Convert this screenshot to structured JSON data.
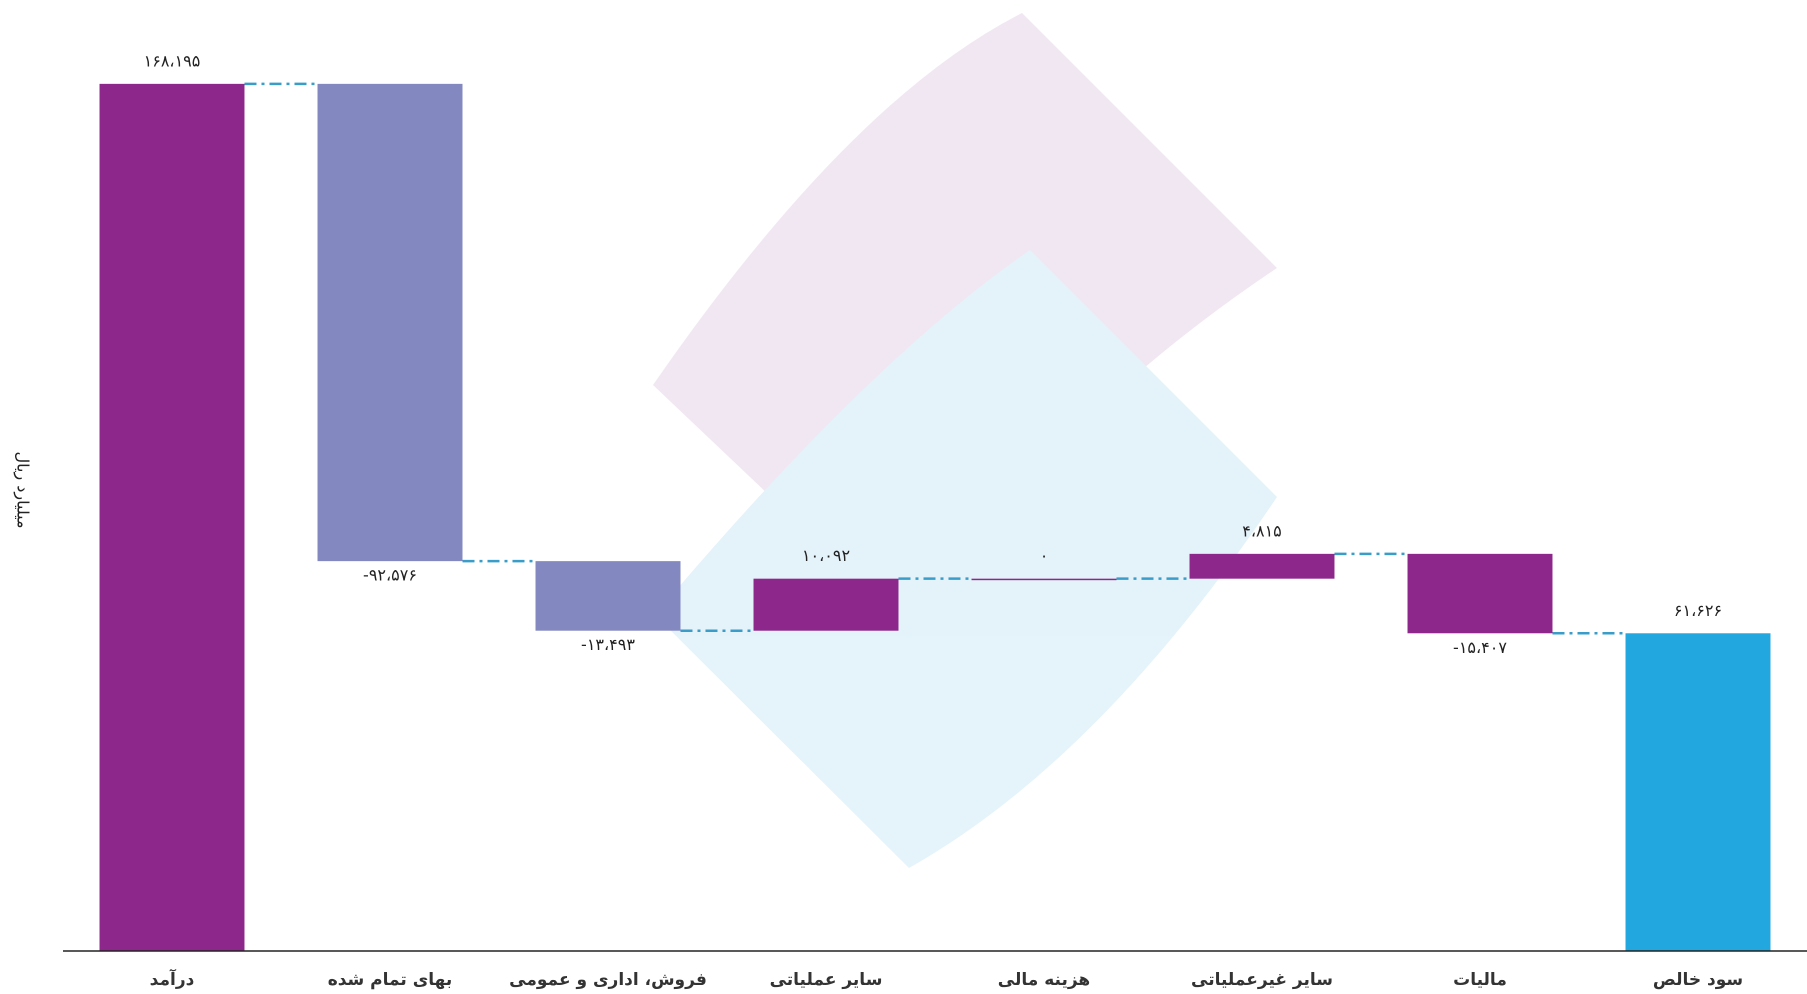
{
  "chart_data": {
    "type": "waterfall",
    "y_label": "میلیارد ریال",
    "categories": [
      "درآمد",
      "بهای تمام شده",
      "فروش، اداری و عمومی",
      "سایر عملیاتی",
      "هزینه مالی",
      "سایر غیرعملیاتی",
      "مالیات",
      "سود خالص"
    ],
    "values": [
      168195,
      -92576,
      -13493,
      10092,
      0,
      4815,
      -15407,
      61626
    ],
    "value_labels": [
      "۱۶۸،۱۹۵",
      "-۹۲،۵۷۶",
      "-۱۳،۴۹۳",
      "۱۰،۰۹۲",
      "۰",
      "۴،۸۱۵",
      "-۱۵،۴۰۷",
      "۶۱،۶۲۶"
    ],
    "totals": [
      0,
      7
    ],
    "colors": [
      "#8e278c",
      "#8388c0",
      "#8388c0",
      "#8e278c",
      "#8e278c",
      "#8e278c",
      "#8e278c",
      "#22a8df"
    ],
    "connector_color": "#3a9cc8",
    "ylim": [
      0,
      180000
    ]
  }
}
